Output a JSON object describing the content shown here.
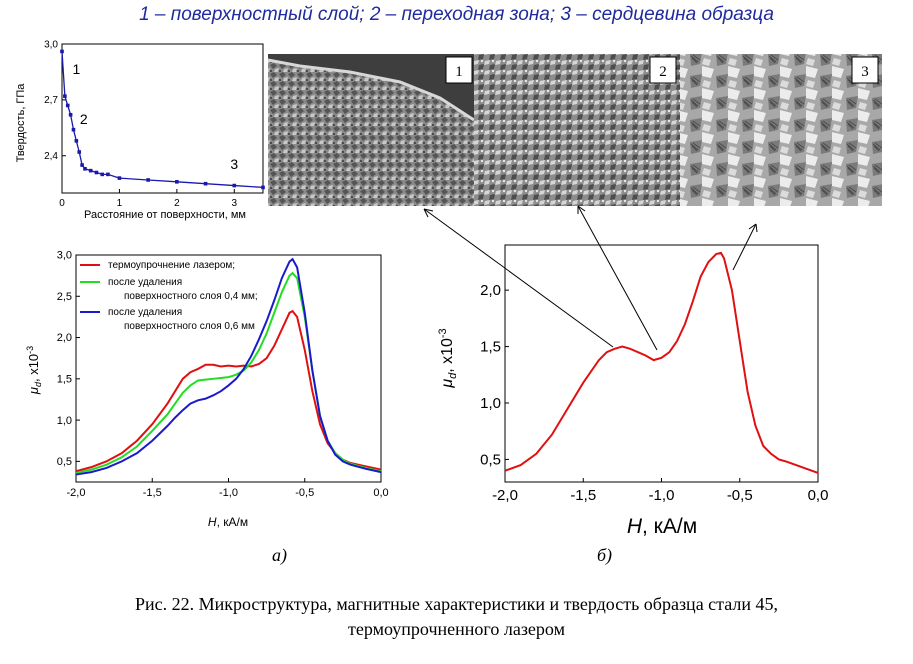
{
  "heading": "1 – поверхностный слой; 2 – переходная зона; 3 – сердцевина образца",
  "caption": {
    "line1": "Рис. 22. Микроструктура, магнитные характеристики и твердость образца стали 45,",
    "line2": "термоупрочненного лазером"
  },
  "panel_labels": {
    "a": "а)",
    "b": "б)"
  },
  "micrographs": [
    {
      "label": "1",
      "tone": "#6f6f6f"
    },
    {
      "label": "2",
      "tone": "#7a7a7a"
    },
    {
      "label": "3",
      "tone": "#9a9a9a"
    }
  ],
  "colors": {
    "red": "#e01010",
    "green": "#22dd22",
    "blue": "#1a1acc",
    "hardness": "#1a1aaa",
    "heading": "#1f2a9e"
  },
  "chart_data": [
    {
      "type": "line",
      "xlabel": "Расстояние от поверхности, мм",
      "ylabel": "Твердость, ГПа",
      "xlim": [
        0,
        3.5
      ],
      "ylim": [
        2.2,
        3.0
      ],
      "xticks": [
        "0",
        "1",
        "2",
        "3"
      ],
      "xtick_values": [
        0,
        1,
        2,
        3
      ],
      "yticks": [
        "2,4",
        "2,7",
        "3,0"
      ],
      "ytick_values": [
        2.4,
        2.7,
        3.0
      ],
      "annotations": [
        {
          "text": "1",
          "x": 0.25,
          "y": 2.84
        },
        {
          "text": "2",
          "x": 0.38,
          "y": 2.57
        },
        {
          "text": "3",
          "x": 3.0,
          "y": 2.33
        }
      ],
      "series": [
        {
          "x": [
            0,
            0.05,
            0.1,
            0.15,
            0.2,
            0.25,
            0.3,
            0.35,
            0.4,
            0.5,
            0.6,
            0.7,
            0.8,
            1.0,
            1.5,
            2.0,
            2.5,
            3.0,
            3.5
          ],
          "y": [
            2.96,
            2.72,
            2.67,
            2.62,
            2.54,
            2.48,
            2.42,
            2.35,
            2.33,
            2.32,
            2.31,
            2.3,
            2.3,
            2.28,
            2.27,
            2.26,
            2.25,
            2.24,
            2.23
          ]
        }
      ]
    },
    {
      "type": "line",
      "xlabel": "H, кА/м",
      "ylabel": "μd, x10-3",
      "xlim": [
        -2.0,
        0.0
      ],
      "ylim": [
        0.25,
        3.0
      ],
      "xticks": [
        "-2,0",
        "-1,5",
        "-1,0",
        "-0,5",
        "0,0"
      ],
      "xtick_values": [
        -2.0,
        -1.5,
        -1.0,
        -0.5,
        0.0
      ],
      "yticks": [
        "0,5",
        "1,0",
        "1,5",
        "2,0",
        "2,5",
        "3,0"
      ],
      "ytick_values": [
        0.5,
        1.0,
        1.5,
        2.0,
        2.5,
        3.0
      ],
      "legend_position": "top-left",
      "series": [
        {
          "name": "термоупрочнение лазером;",
          "color": "#e01010",
          "x": [
            -2.0,
            -1.9,
            -1.8,
            -1.7,
            -1.6,
            -1.5,
            -1.4,
            -1.35,
            -1.3,
            -1.25,
            -1.2,
            -1.15,
            -1.1,
            -1.05,
            -1.0,
            -0.95,
            -0.9,
            -0.85,
            -0.8,
            -0.75,
            -0.7,
            -0.65,
            -0.6,
            -0.58,
            -0.55,
            -0.5,
            -0.45,
            -0.4,
            -0.35,
            -0.3,
            -0.25,
            -0.2,
            -0.1,
            0.0
          ],
          "y": [
            0.38,
            0.43,
            0.5,
            0.6,
            0.75,
            0.95,
            1.2,
            1.35,
            1.5,
            1.58,
            1.62,
            1.67,
            1.67,
            1.65,
            1.66,
            1.65,
            1.66,
            1.65,
            1.68,
            1.75,
            1.9,
            2.1,
            2.3,
            2.32,
            2.25,
            1.85,
            1.35,
            0.95,
            0.72,
            0.6,
            0.52,
            0.48,
            0.44,
            0.4
          ]
        },
        {
          "name": "после удаления поверхностного слоя 0,4 мм;",
          "color": "#22dd22",
          "x": [
            -2.0,
            -1.9,
            -1.8,
            -1.7,
            -1.6,
            -1.5,
            -1.4,
            -1.35,
            -1.3,
            -1.25,
            -1.2,
            -1.15,
            -1.1,
            -1.05,
            -1.0,
            -0.95,
            -0.9,
            -0.85,
            -0.8,
            -0.75,
            -0.7,
            -0.65,
            -0.6,
            -0.58,
            -0.55,
            -0.5,
            -0.45,
            -0.4,
            -0.35,
            -0.3,
            -0.25,
            -0.2,
            -0.1,
            0.0
          ],
          "y": [
            0.36,
            0.4,
            0.46,
            0.55,
            0.68,
            0.87,
            1.07,
            1.2,
            1.33,
            1.42,
            1.48,
            1.49,
            1.5,
            1.51,
            1.52,
            1.55,
            1.6,
            1.7,
            1.85,
            2.05,
            2.3,
            2.55,
            2.75,
            2.78,
            2.72,
            2.25,
            1.6,
            1.05,
            0.75,
            0.6,
            0.52,
            0.47,
            0.42,
            0.38
          ]
        },
        {
          "name": "после удаления поверхностного слоя 0,6 мм",
          "color": "#1a1acc",
          "x": [
            -2.0,
            -1.9,
            -1.8,
            -1.7,
            -1.6,
            -1.5,
            -1.4,
            -1.35,
            -1.3,
            -1.25,
            -1.2,
            -1.15,
            -1.1,
            -1.05,
            -1.0,
            -0.95,
            -0.9,
            -0.85,
            -0.8,
            -0.75,
            -0.7,
            -0.65,
            -0.6,
            -0.58,
            -0.55,
            -0.5,
            -0.45,
            -0.4,
            -0.35,
            -0.3,
            -0.25,
            -0.2,
            -0.1,
            0.0
          ],
          "y": [
            0.34,
            0.37,
            0.42,
            0.5,
            0.6,
            0.75,
            0.93,
            1.03,
            1.12,
            1.2,
            1.24,
            1.26,
            1.3,
            1.35,
            1.42,
            1.5,
            1.62,
            1.78,
            1.98,
            2.2,
            2.45,
            2.72,
            2.92,
            2.95,
            2.85,
            2.3,
            1.6,
            1.05,
            0.75,
            0.58,
            0.5,
            0.46,
            0.41,
            0.37
          ]
        }
      ]
    },
    {
      "type": "line",
      "xlabel": "H, кА/м",
      "ylabel": "μd, x10-3",
      "xlim": [
        -2.0,
        0.0
      ],
      "ylim": [
        0.3,
        2.4
      ],
      "xticks": [
        "-2,0",
        "-1,5",
        "-1,0",
        "-0,5",
        "0,0"
      ],
      "xtick_values": [
        -2.0,
        -1.5,
        -1.0,
        -0.5,
        0.0
      ],
      "yticks": [
        "0,5",
        "1,0",
        "1,5",
        "2,0"
      ],
      "ytick_values": [
        0.5,
        1.0,
        1.5,
        2.0
      ],
      "series": [
        {
          "color": "#e01010",
          "x": [
            -2.0,
            -1.9,
            -1.8,
            -1.7,
            -1.6,
            -1.5,
            -1.4,
            -1.35,
            -1.3,
            -1.25,
            -1.2,
            -1.15,
            -1.1,
            -1.05,
            -1.0,
            -0.95,
            -0.9,
            -0.85,
            -0.8,
            -0.75,
            -0.7,
            -0.65,
            -0.62,
            -0.6,
            -0.55,
            -0.5,
            -0.45,
            -0.4,
            -0.35,
            -0.3,
            -0.25,
            -0.2,
            -0.1,
            0.0
          ],
          "y": [
            0.4,
            0.45,
            0.55,
            0.72,
            0.95,
            1.18,
            1.38,
            1.45,
            1.48,
            1.5,
            1.48,
            1.45,
            1.42,
            1.38,
            1.4,
            1.45,
            1.55,
            1.7,
            1.9,
            2.12,
            2.25,
            2.32,
            2.33,
            2.28,
            2.0,
            1.55,
            1.1,
            0.8,
            0.62,
            0.55,
            0.5,
            0.48,
            0.43,
            0.38
          ]
        }
      ]
    }
  ]
}
